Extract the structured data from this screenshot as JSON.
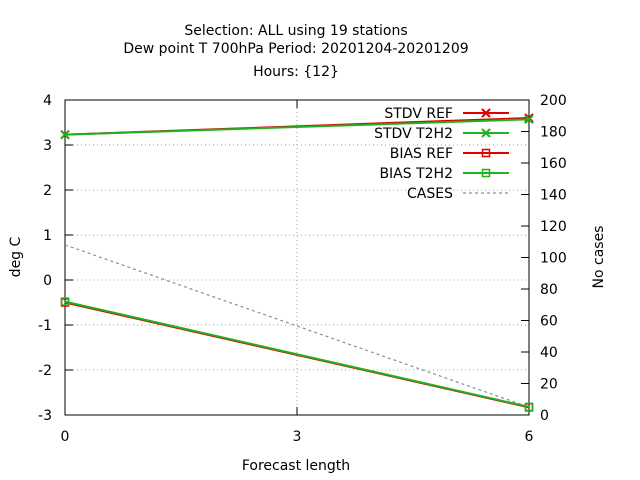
{
  "chart_data": {
    "type": "line",
    "title_lines": [
      "Selection: ALL using    19 stations",
      "Dew point T 700hPa   Period: 20201204-20201209",
      "Hours: {12}"
    ],
    "xlabel": "Forecast length",
    "ylabel": "deg C",
    "y2label": "No cases",
    "x": [
      0,
      3,
      6
    ],
    "x_ticks": [
      "0",
      "3",
      "6"
    ],
    "xlim": [
      0,
      6
    ],
    "ylim": [
      -3,
      4
    ],
    "y_ticks": [
      "-3",
      "-2",
      "-1",
      "0",
      "1",
      "2",
      "3",
      "4"
    ],
    "y2lim": [
      0,
      200
    ],
    "y2_ticks": [
      "0",
      "20",
      "40",
      "60",
      "80",
      "100",
      "120",
      "140",
      "160",
      "180",
      "200"
    ],
    "grid": true,
    "legend_position": "top-right",
    "series": [
      {
        "name": "STDV REF",
        "x": [
          0,
          6
        ],
        "values": [
          3.23,
          3.6
        ],
        "color": "#e00000",
        "marker": "x",
        "axis": "y"
      },
      {
        "name": "STDV T2H2",
        "x": [
          0,
          6
        ],
        "values": [
          3.23,
          3.57
        ],
        "color": "#20b020",
        "marker": "x",
        "axis": "y"
      },
      {
        "name": "BIAS REF",
        "x": [
          0,
          6
        ],
        "values": [
          -0.5,
          -2.83
        ],
        "color": "#e00000",
        "marker": "square",
        "axis": "y"
      },
      {
        "name": "BIAS T2H2",
        "x": [
          0,
          6
        ],
        "values": [
          -0.48,
          -2.82
        ],
        "color": "#20b020",
        "marker": "square",
        "axis": "y"
      },
      {
        "name": "CASES",
        "x": [
          0,
          6
        ],
        "values": [
          108,
          5
        ],
        "color": "#8090a8",
        "marker": "none",
        "axis": "y2",
        "dash": true
      }
    ]
  }
}
